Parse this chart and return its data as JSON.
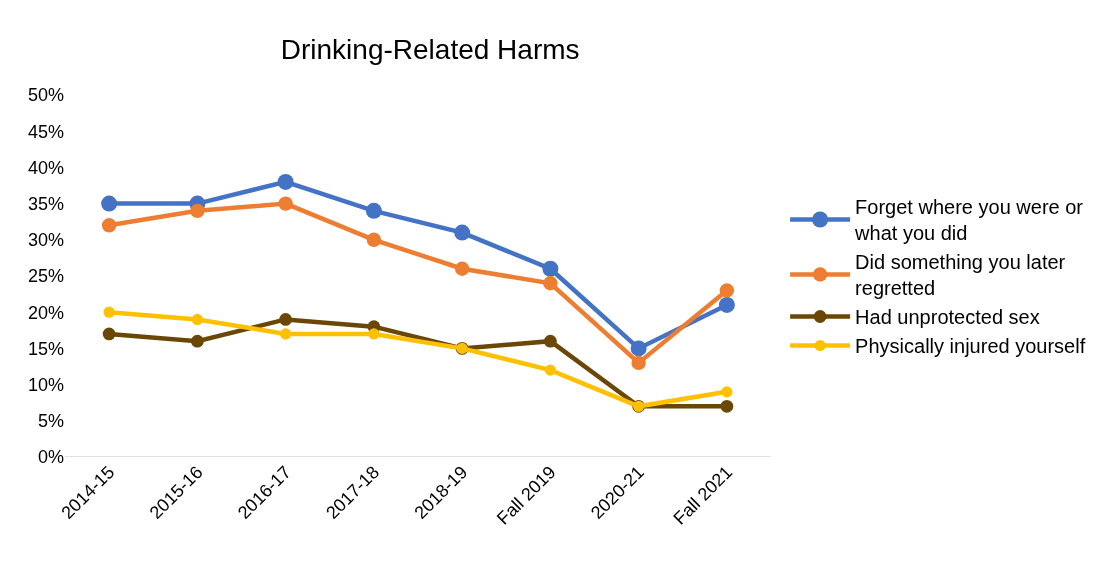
{
  "chart_data": {
    "type": "line",
    "title": "Drinking-Related Harms",
    "categories": [
      "2014-15",
      "2015-16",
      "2016-17",
      "2017-18",
      "2018-19",
      "Fall 2019",
      "2020-21",
      "Fall 2021"
    ],
    "series": [
      {
        "name": "Forget where you were or what you did",
        "color": "#4472c4",
        "values": [
          35,
          35,
          38,
          34,
          31,
          26,
          15,
          21
        ]
      },
      {
        "name": "Did something you later regretted",
        "color": "#ed7d31",
        "values": [
          32,
          34,
          35,
          30,
          26,
          24,
          13,
          23
        ]
      },
      {
        "name": "Had unprotected sex",
        "color": "#6b4706",
        "values": [
          17,
          16,
          19,
          18,
          15,
          16,
          7,
          7
        ]
      },
      {
        "name": "Physically injured yourself",
        "color": "#ffc000",
        "values": [
          20,
          19,
          17,
          17,
          15,
          12,
          7,
          9
        ]
      }
    ],
    "ylim": [
      0,
      50
    ],
    "yticks": [
      {
        "value": 0,
        "label": "0%"
      },
      {
        "value": 5,
        "label": "5%"
      },
      {
        "value": 10,
        "label": "10%"
      },
      {
        "value": 15,
        "label": "15%"
      },
      {
        "value": 20,
        "label": "20%"
      },
      {
        "value": 25,
        "label": "25%"
      },
      {
        "value": 30,
        "label": "30%"
      },
      {
        "value": 35,
        "label": "35%"
      },
      {
        "value": 40,
        "label": "40%"
      },
      {
        "value": 45,
        "label": "45%"
      },
      {
        "value": 50,
        "label": "50%"
      }
    ],
    "grid": false,
    "legend": "right",
    "marker": "circle",
    "line_style": "solid"
  }
}
